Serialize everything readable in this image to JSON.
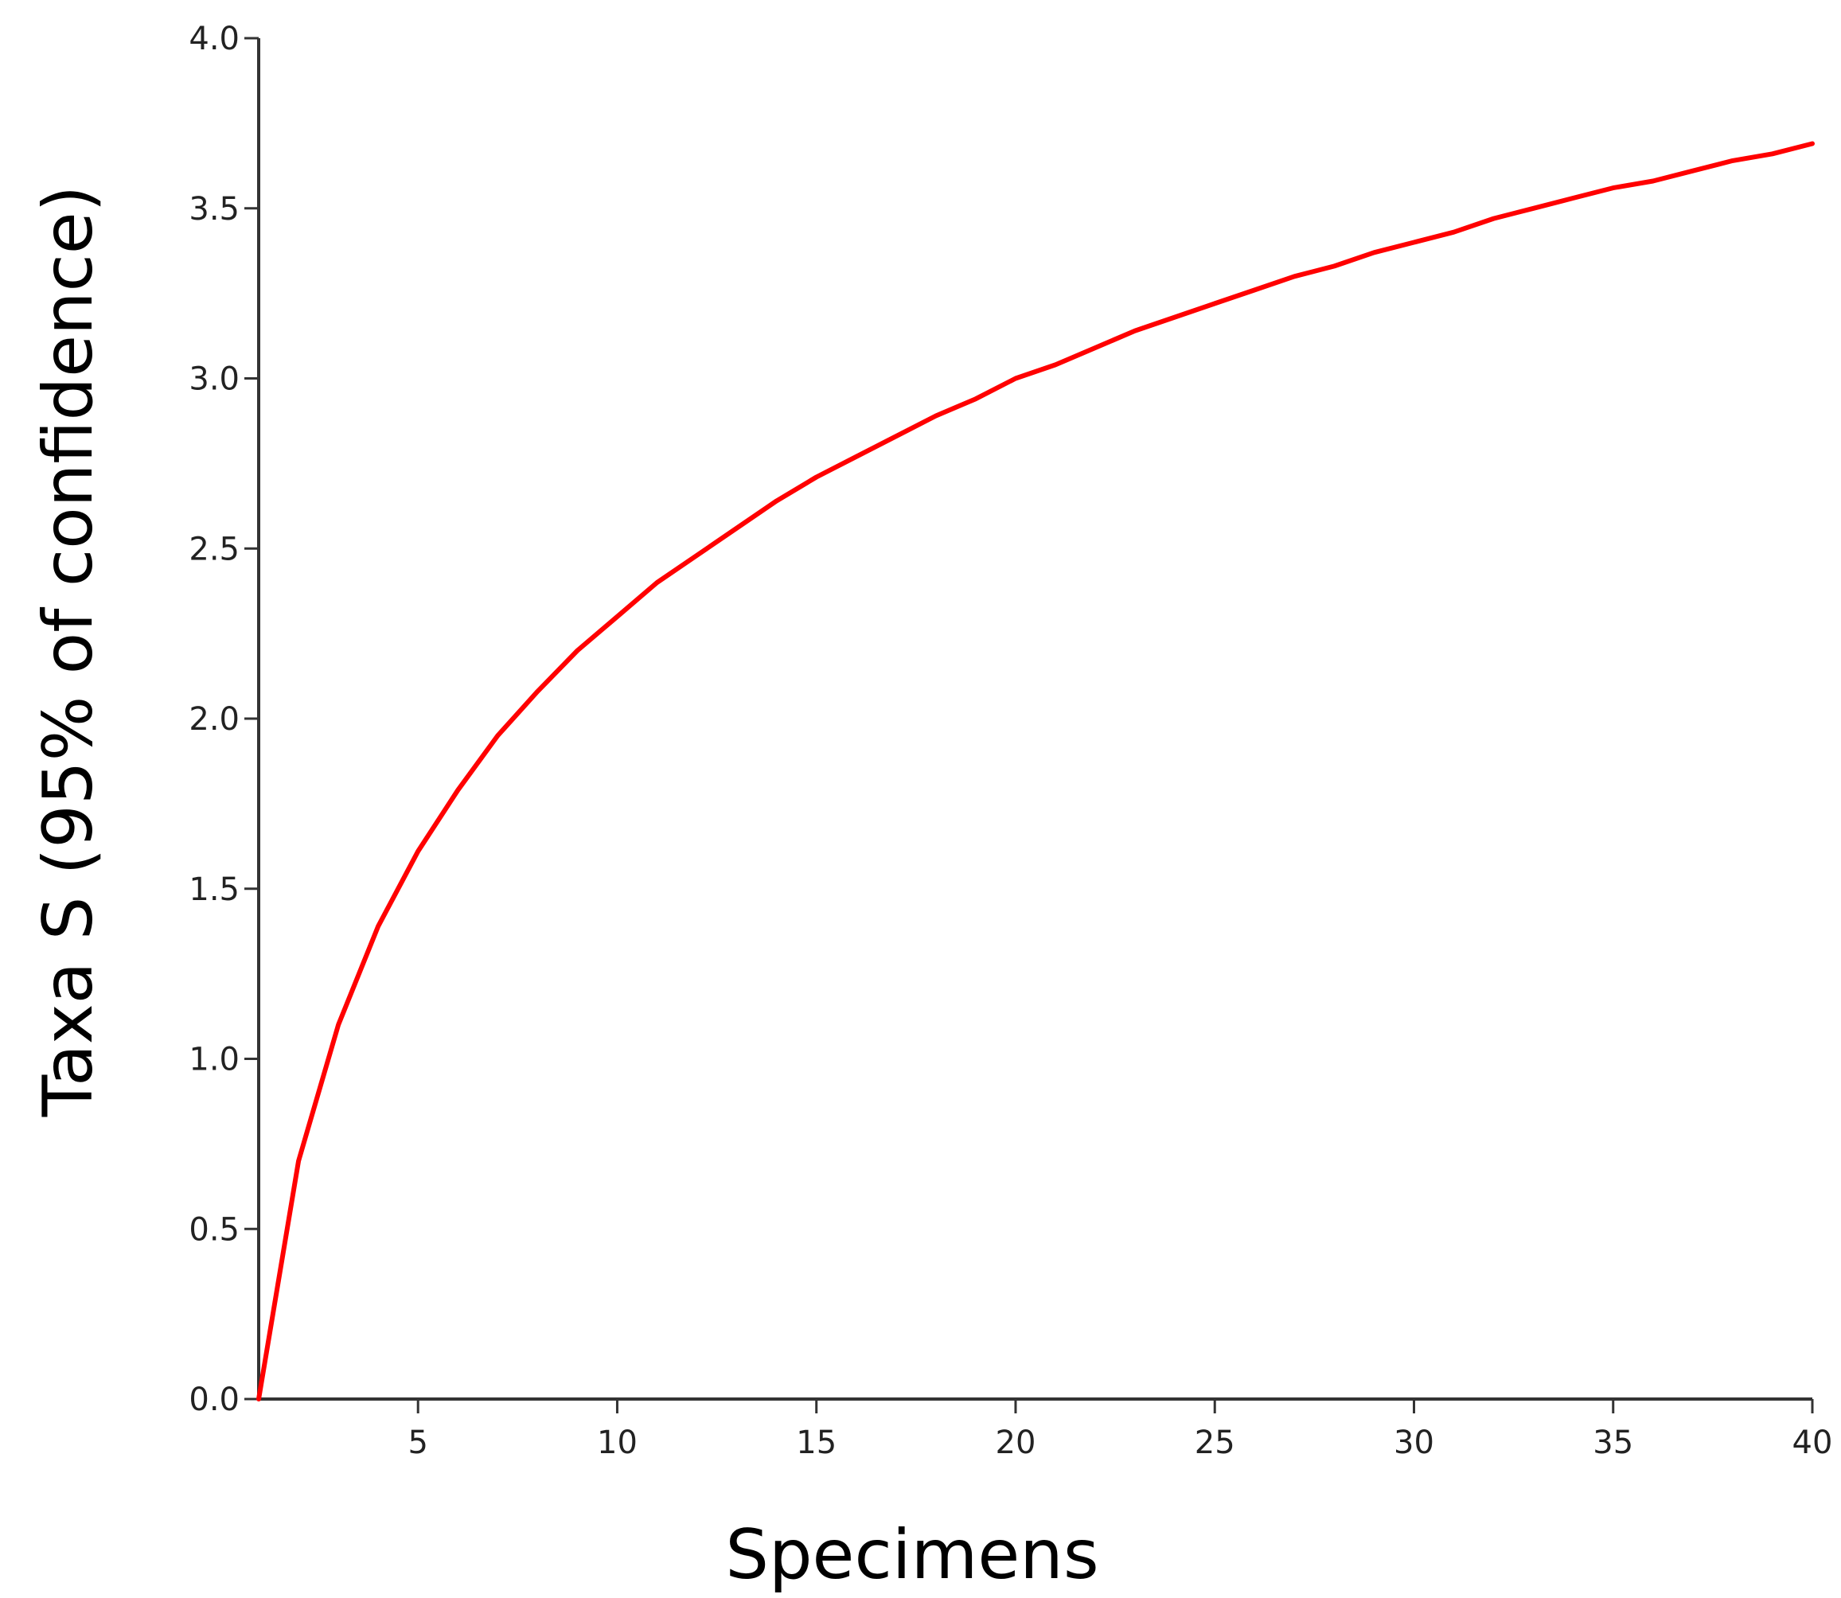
{
  "chart_data": {
    "type": "line",
    "xlabel": "Specimens",
    "ylabel": "Taxa S (95% of confidence)",
    "xlim": [
      1,
      40
    ],
    "ylim": [
      0,
      4
    ],
    "x_ticks": [
      5,
      10,
      15,
      20,
      25,
      30,
      35,
      40
    ],
    "x_tick_labels": [
      "5",
      "10",
      "15",
      "20",
      "25",
      "30",
      "35",
      "40"
    ],
    "y_ticks": [
      0,
      0.5,
      1,
      1.5,
      2,
      2.5,
      3,
      3.5,
      4
    ],
    "y_tick_labels": [
      "0.0",
      "0.5",
      "1.0",
      "1.5",
      "2.0",
      "2.5",
      "3.0",
      "3.5",
      "4.0"
    ],
    "grid": false,
    "legend": "none",
    "series": [
      {
        "color": "#ff0000",
        "x": [
          1,
          2,
          3,
          4,
          5,
          6,
          7,
          8,
          9,
          10,
          11,
          12,
          13,
          14,
          15,
          16,
          17,
          18,
          19,
          20,
          21,
          22,
          23,
          24,
          25,
          26,
          27,
          28,
          29,
          30,
          31,
          32,
          33,
          34,
          35,
          36,
          37,
          38,
          39,
          40
        ],
        "y": [
          0.0,
          0.7,
          1.1,
          1.39,
          1.61,
          1.79,
          1.95,
          2.08,
          2.2,
          2.3,
          2.4,
          2.48,
          2.56,
          2.64,
          2.71,
          2.77,
          2.83,
          2.89,
          2.94,
          3.0,
          3.04,
          3.09,
          3.14,
          3.18,
          3.22,
          3.26,
          3.3,
          3.33,
          3.37,
          3.4,
          3.43,
          3.47,
          3.5,
          3.53,
          3.56,
          3.58,
          3.61,
          3.64,
          3.66,
          3.69
        ]
      }
    ]
  }
}
